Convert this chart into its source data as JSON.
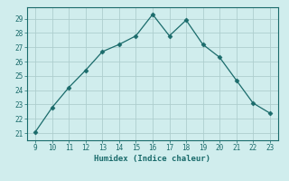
{
  "x": [
    9,
    10,
    11,
    12,
    13,
    14,
    15,
    16,
    17,
    18,
    19,
    20,
    21,
    22,
    23
  ],
  "y": [
    21.1,
    22.8,
    24.2,
    25.4,
    26.7,
    27.2,
    27.8,
    29.3,
    27.8,
    28.9,
    27.2,
    26.3,
    24.7,
    23.1,
    22.4
  ],
  "xlim": [
    8.5,
    23.5
  ],
  "ylim": [
    20.5,
    29.8
  ],
  "xticks": [
    9,
    10,
    11,
    12,
    13,
    14,
    15,
    16,
    17,
    18,
    19,
    20,
    21,
    22,
    23
  ],
  "yticks": [
    21,
    22,
    23,
    24,
    25,
    26,
    27,
    28,
    29
  ],
  "xlabel": "Humidex (Indice chaleur)",
  "line_color": "#1a6b6b",
  "marker": "D",
  "marker_size": 2.5,
  "bg_color": "#d0eded",
  "grid_color": "#aecece",
  "tick_color": "#1a6b6b",
  "label_color": "#1a6b6b",
  "spine_color": "#1a6b6b"
}
